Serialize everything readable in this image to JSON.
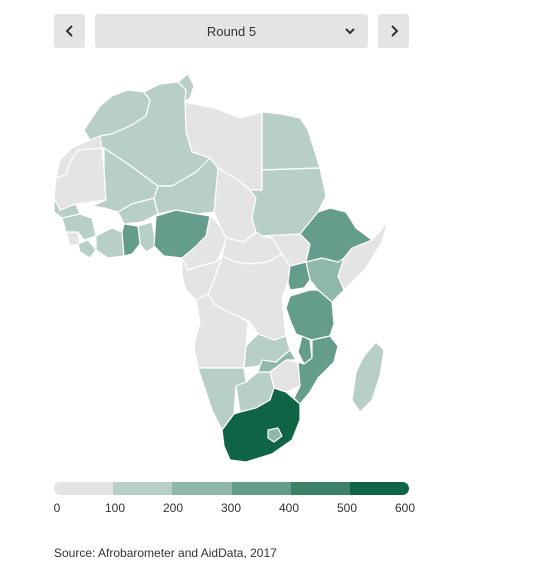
{
  "controls": {
    "selected_round": "Round 5",
    "prev_icon": "chevron-left-icon",
    "next_icon": "chevron-right-icon",
    "dropdown_icon": "chevron-down-icon"
  },
  "map": {
    "region": "Africa",
    "no_data_color": "#e4e4e4",
    "border_color": "#ffffff"
  },
  "legend": {
    "ticks": [
      "0",
      "100",
      "200",
      "300",
      "400",
      "500",
      "600"
    ],
    "bins": [
      {
        "from": 0,
        "to": 100,
        "color": "#e4e4e4"
      },
      {
        "from": 100,
        "to": 200,
        "color": "#b8cfc8"
      },
      {
        "from": 200,
        "to": 300,
        "color": "#8fb8aa"
      },
      {
        "from": 300,
        "to": 400,
        "color": "#659d8c"
      },
      {
        "from": 400,
        "to": 500,
        "color": "#3d8169"
      },
      {
        "from": 500,
        "to": 600,
        "color": "#0f6446"
      }
    ]
  },
  "source": "Source:  Afrobarometer and AidData, 2017"
}
